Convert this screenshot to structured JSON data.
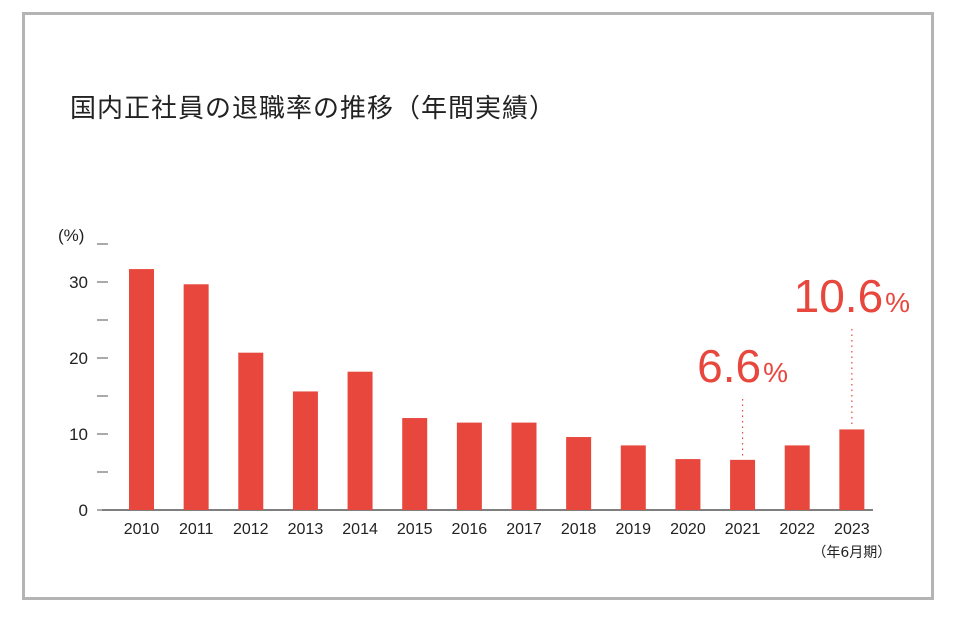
{
  "title": "国内正社員の退職率の推移（年間実績）",
  "colors": {
    "bar": "#e8473d",
    "axis": "#555555",
    "text": "#222222",
    "frame": "#b4b4b4"
  },
  "chart_data": {
    "type": "bar",
    "title": "国内正社員の退職率の推移（年間実績）",
    "ylabel": "(%)",
    "xlabel": "",
    "ylim": [
      0,
      35
    ],
    "yticks": [
      0,
      10,
      20,
      30
    ],
    "grid": false,
    "categories": [
      "2010",
      "2011",
      "2012",
      "2013",
      "2014",
      "2015",
      "2016",
      "2017",
      "2018",
      "2019",
      "2020",
      "2021",
      "2022",
      "2023"
    ],
    "category_notes": {
      "2023": "（年6月期）"
    },
    "values": [
      31.7,
      29.7,
      20.7,
      15.6,
      18.2,
      12.1,
      11.5,
      11.5,
      9.6,
      8.5,
      6.7,
      6.6,
      8.5,
      10.6
    ],
    "annotations": [
      {
        "category": "2021",
        "value_text": "6.6",
        "unit": "%"
      },
      {
        "category": "2023",
        "value_text": "10.6",
        "unit": "%"
      }
    ]
  }
}
